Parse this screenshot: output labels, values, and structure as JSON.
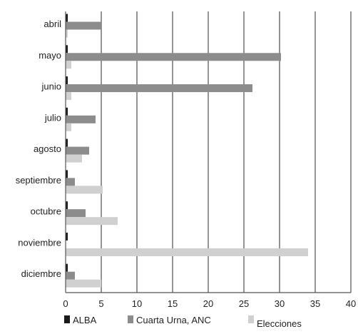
{
  "chart_data": {
    "type": "bar",
    "orientation": "horizontal",
    "categories": [
      "abril",
      "mayo",
      "junio",
      "julio",
      "agosto",
      "septiembre",
      "octubre",
      "noviembre",
      "diciembre"
    ],
    "series": [
      {
        "name": "ALBA",
        "color": "#1a1a1a",
        "values": [
          0.3,
          0.3,
          0.3,
          0.3,
          0.3,
          0.3,
          0.3,
          0.3,
          0.3
        ]
      },
      {
        "name": "Cuarta Urna, ANC",
        "color": "#8c8c8c",
        "values": [
          5,
          30.2,
          26.2,
          4.2,
          3.3,
          1.3,
          2.8,
          0,
          1.3
        ]
      },
      {
        "name": "Elecciones",
        "color": "#d0d0d0",
        "values": [
          0.3,
          0.8,
          0.8,
          0.8,
          2.3,
          5.2,
          7.3,
          34,
          5
        ]
      }
    ],
    "xticks": [
      0,
      5,
      10,
      15,
      20,
      25,
      30,
      35,
      40
    ],
    "xlim": [
      0,
      40
    ],
    "grid": true,
    "legend_position": "bottom"
  }
}
